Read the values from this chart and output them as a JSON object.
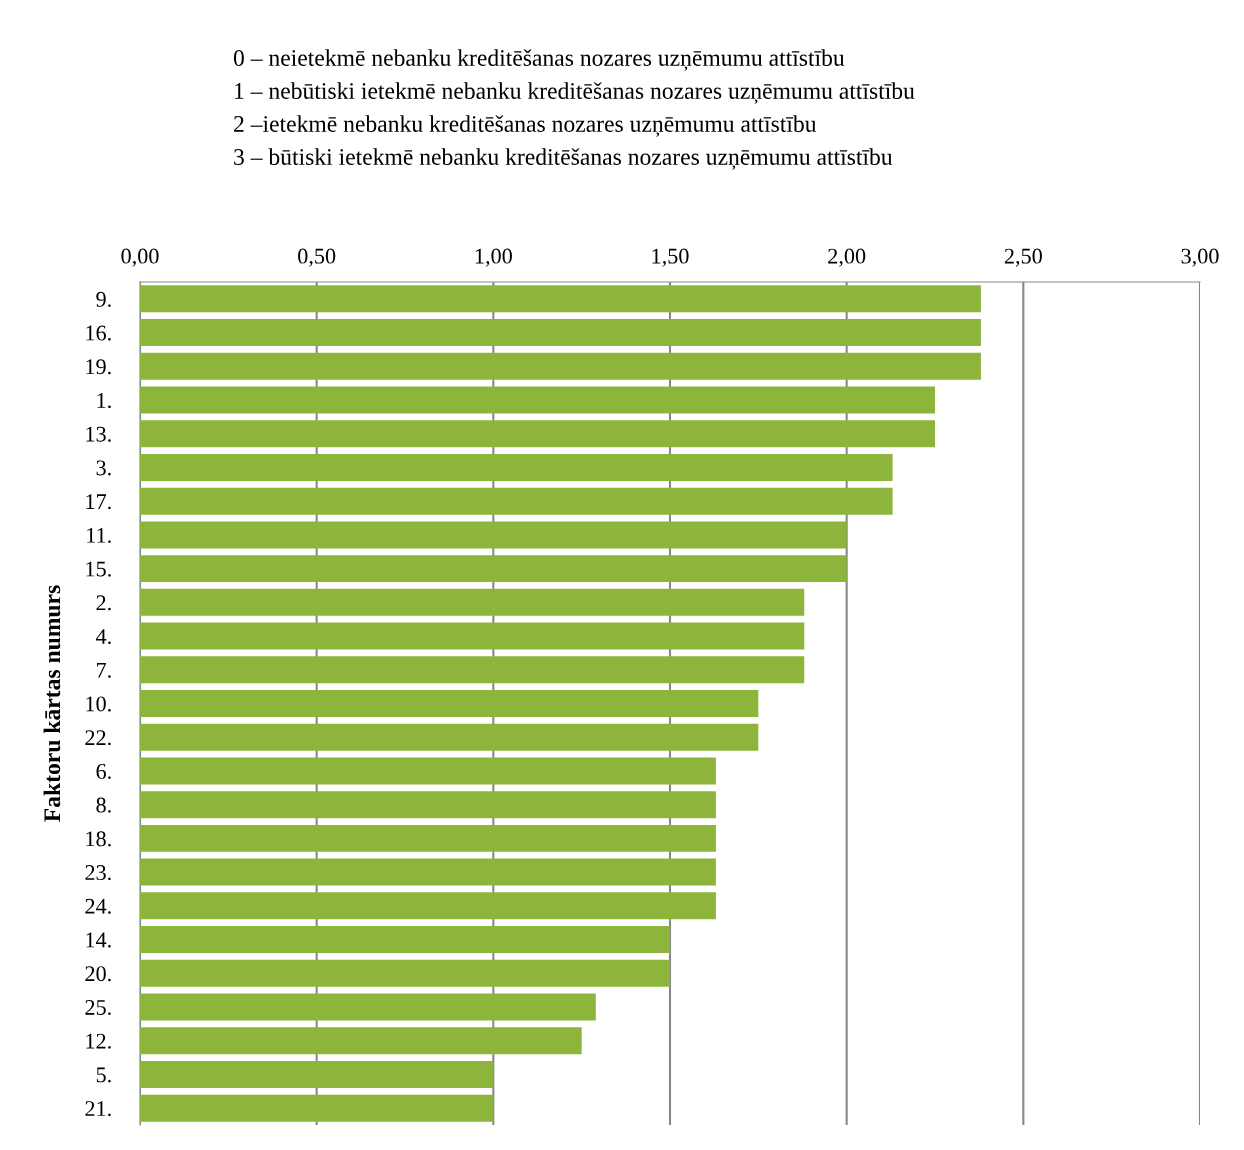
{
  "chart_data": {
    "type": "bar",
    "orientation": "horizontal",
    "ylabel": "Faktoru kārtas numurs",
    "annotations": [
      "0 – neietekmē nebanku kreditēšanas nozares uzņēmumu attīstību",
      "1 – nebūtiski ietekmē nebanku kreditēšanas nozares uzņēmumu attīstību",
      "2 –ietekmē nebanku kreditēšanas nozares uzņēmumu attīstību",
      "3 – būtiski ietekmē nebanku kreditēšanas nozares uzņēmumu attīstību"
    ],
    "categories": [
      "9.",
      "16.",
      "19.",
      "1.",
      "13.",
      "3.",
      "17.",
      "11.",
      "15.",
      "2.",
      "4.",
      "7.",
      "10.",
      "22.",
      "6.",
      "8.",
      "18.",
      "23.",
      "24.",
      "14.",
      "20.",
      "25.",
      "12.",
      "5.",
      "21."
    ],
    "values": [
      2.38,
      2.38,
      2.38,
      2.25,
      2.25,
      2.13,
      2.13,
      2.0,
      2.0,
      1.88,
      1.88,
      1.88,
      1.75,
      1.75,
      1.63,
      1.63,
      1.63,
      1.63,
      1.63,
      1.5,
      1.5,
      1.29,
      1.25,
      1.0,
      1.0
    ],
    "color": "#8db53c",
    "xlim": [
      0,
      3
    ],
    "xticks": [
      {
        "value": 0,
        "label": "0,00"
      },
      {
        "value": 0.5,
        "label": "0,50"
      },
      {
        "value": 1,
        "label": "1,00"
      },
      {
        "value": 1.5,
        "label": "1,50"
      },
      {
        "value": 2,
        "label": "2,00"
      },
      {
        "value": 2.5,
        "label": "2,50"
      },
      {
        "value": 3,
        "label": "3,00"
      }
    ],
    "grid": "x",
    "legend": false
  }
}
